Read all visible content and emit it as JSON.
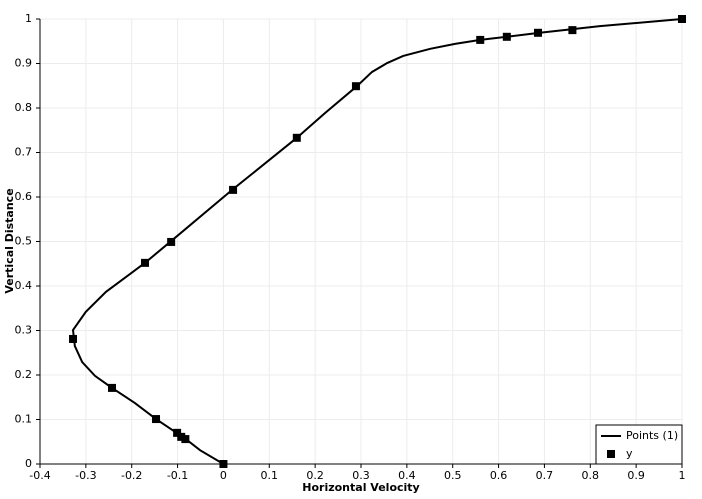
{
  "chart_data": {
    "type": "line",
    "x_label": "Horizontal Velocity",
    "y_label": "Vertical Distance",
    "xlim": [
      -0.4,
      1
    ],
    "ylim": [
      0,
      1
    ],
    "xticks": [
      -0.4,
      -0.3,
      -0.2,
      -0.1,
      0,
      0.1,
      0.2,
      0.3,
      0.4,
      0.5,
      0.6,
      0.7,
      0.8,
      0.9,
      1
    ],
    "yticks": [
      0,
      0.1,
      0.2,
      0.3,
      0.4,
      0.5,
      0.6,
      0.7,
      0.8,
      0.9,
      1
    ],
    "grid": true,
    "legend": "lower right",
    "series": [
      {
        "name": "Points (1)",
        "type": "line",
        "color": "#000000",
        "x": [
          0,
          -0.051,
          -0.082,
          -0.147,
          -0.193,
          -0.243,
          -0.28,
          -0.308,
          -0.324,
          -0.328,
          -0.3,
          -0.256,
          -0.171,
          -0.114,
          0.019,
          0.16,
          0.222,
          0.291,
          0.324,
          0.357,
          0.392,
          0.451,
          0.505,
          0.56,
          0.69,
          0.821,
          1.0
        ],
        "values": [
          0,
          0.031,
          0.056,
          0.101,
          0.137,
          0.171,
          0.198,
          0.229,
          0.265,
          0.301,
          0.342,
          0.387,
          0.452,
          0.501,
          0.616,
          0.733,
          0.789,
          0.849,
          0.881,
          0.901,
          0.917,
          0.933,
          0.944,
          0.953,
          0.969,
          0.984,
          1.0
        ]
      },
      {
        "name": "y",
        "type": "scatter",
        "color": "#000000",
        "x": [
          0,
          -0.083,
          -0.092,
          -0.101,
          -0.147,
          -0.243,
          -0.328,
          -0.171,
          -0.114,
          0.021,
          0.16,
          0.289,
          0.56,
          0.618,
          0.686,
          0.761,
          1.0
        ],
        "values": [
          0,
          0.056,
          0.061,
          0.07,
          0.101,
          0.171,
          0.281,
          0.452,
          0.499,
          0.616,
          0.733,
          0.849,
          0.953,
          0.96,
          0.969,
          0.975,
          1.0
        ]
      }
    ]
  }
}
